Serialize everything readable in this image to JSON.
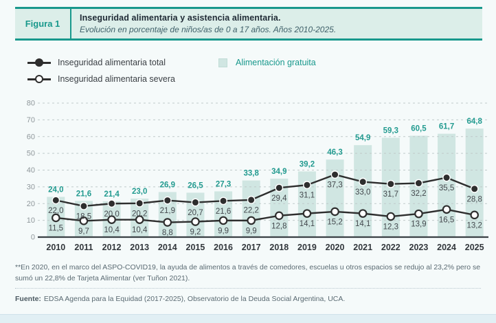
{
  "figure": {
    "tag": "Figura 1",
    "title": "Inseguridad alimentaria y asistencia alimentaria.",
    "subtitle": "Evolución en porcentaje de niños/as de 0 a 17 años. Años 2010-2025."
  },
  "legend": {
    "total": "Inseguridad alimentaria total",
    "severa": "Inseguridad alimentaria severa",
    "bars": "Alimentación gratuita"
  },
  "colors": {
    "teal": "#18988c",
    "label_teal": "#239b90",
    "bar_fill": "#d0e6e2",
    "line_dark": "#2e2e2e",
    "grid": "#bfc9c9",
    "axis": "#3a4045",
    "ytick_text": "#8f979b",
    "value_text": "#43484d",
    "year_text": "#32373c"
  },
  "chart_data": {
    "type": "bar",
    "categories": [
      "2010",
      "2011",
      "2012",
      "2013",
      "2014",
      "2015",
      "2016",
      "2017",
      "2018",
      "2019",
      "2020",
      "2021",
      "2022",
      "2023",
      "2024",
      "2025"
    ],
    "series": [
      {
        "name": "Alimentación gratuita",
        "type": "bar",
        "values": [
          24.0,
          21.6,
          21.4,
          23.0,
          26.9,
          26.5,
          27.3,
          33.8,
          34.9,
          39.2,
          46.3,
          54.9,
          59.3,
          60.5,
          61.7,
          64.8
        ]
      },
      {
        "name": "Inseguridad alimentaria total",
        "type": "line",
        "marker": "filled",
        "values": [
          22.0,
          18.5,
          20.0,
          20.2,
          21.9,
          20.7,
          21.6,
          22.2,
          29.4,
          31.1,
          37.3,
          33.0,
          31.7,
          32.2,
          35.5,
          28.8
        ]
      },
      {
        "name": "Inseguridad alimentaria severa",
        "type": "line",
        "marker": "open",
        "values": [
          11.5,
          9.7,
          10.4,
          10.4,
          8.8,
          9.2,
          9.9,
          9.9,
          12.8,
          14.1,
          15.2,
          14.1,
          12.3,
          13.9,
          16.5,
          13.2
        ]
      }
    ],
    "ylim": [
      0,
      80
    ],
    "yticks": [
      0,
      10,
      20,
      30,
      40,
      50,
      60,
      70,
      80
    ],
    "grid": "dashed",
    "decimal_separator": ",",
    "legend_position": "top-left"
  },
  "footnote": "**En 2020, en el marco del ASPO-COVID19, la ayuda de alimentos a través de comedores, escuelas u otros espacios se redujo al 23,2% pero se sumó un 22,8% de Tarjeta Alimentar (ver Tuñon 2021).",
  "source": {
    "label": "Fuente:",
    "text": "EDSA Agenda para la Equidad (2017-2025), Observatorio de la Deuda Social Argentina, UCA."
  }
}
